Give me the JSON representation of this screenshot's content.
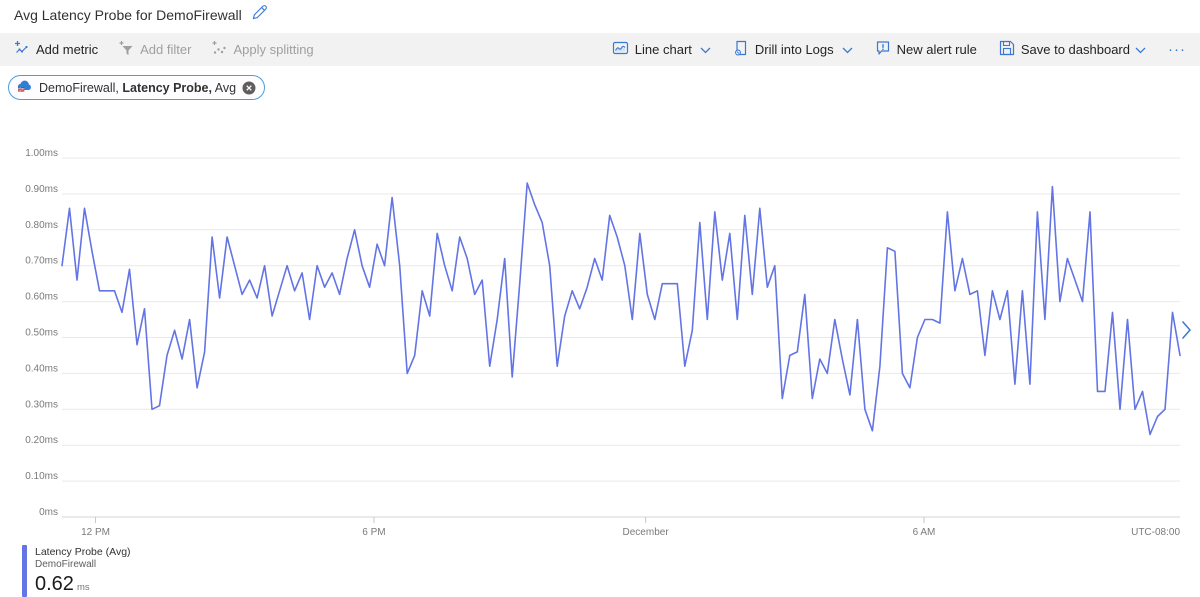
{
  "page": {
    "title": "Avg Latency Probe for DemoFirewall"
  },
  "toolbar": {
    "add_metric": "Add metric",
    "add_filter": "Add filter",
    "apply_splitting": "Apply splitting",
    "line_chart": "Line chart",
    "drill_into_logs": "Drill into Logs",
    "new_alert_rule": "New alert rule",
    "save_to_dashboard": "Save to dashboard",
    "more": "···"
  },
  "metric_pill": {
    "resource": "DemoFirewall,",
    "metric": "Latency Probe,",
    "aggregation": "Avg"
  },
  "legend": {
    "series_label": "Latency Probe (Avg)",
    "resource": "DemoFirewall",
    "value": "0.62",
    "unit": "ms"
  },
  "colors": {
    "series": "#6374e5",
    "icon_blue": "#3b78d2",
    "toolbar_bg": "#f2f2f2",
    "disabled_text": "#a19f9d",
    "text": "#323130",
    "axis_text": "#7a7a7a",
    "grid": "#e9e9e9",
    "pill_border": "#4f9cda"
  },
  "chart_data": {
    "type": "line",
    "title": "Avg Latency Probe for DemoFirewall",
    "y_unit": "ms",
    "ylim": [
      0,
      1.0
    ],
    "grid": true,
    "legend_position": "bottom-left",
    "timezone_label": "UTC-08:00",
    "y_ticks": [
      {
        "label": "1.00ms",
        "v": 1.0
      },
      {
        "label": "0.90ms",
        "v": 0.9
      },
      {
        "label": "0.80ms",
        "v": 0.8
      },
      {
        "label": "0.70ms",
        "v": 0.7
      },
      {
        "label": "0.60ms",
        "v": 0.6
      },
      {
        "label": "0.50ms",
        "v": 0.5
      },
      {
        "label": "0.40ms",
        "v": 0.4
      },
      {
        "label": "0.30ms",
        "v": 0.3
      },
      {
        "label": "0.20ms",
        "v": 0.2
      },
      {
        "label": "0.10ms",
        "v": 0.1
      },
      {
        "label": "0ms",
        "v": 0.0
      }
    ],
    "x_ticks": [
      {
        "label": "12 PM",
        "f": 0.03
      },
      {
        "label": "6 PM",
        "f": 0.279
      },
      {
        "label": "December",
        "f": 0.522
      },
      {
        "label": "6 AM",
        "f": 0.771
      }
    ],
    "series": [
      {
        "name": "Latency Probe (Avg)",
        "resource": "DemoFirewall",
        "aggregation": "Avg",
        "avg_display": "0.62 ms",
        "color": "#6374e5",
        "values": [
          0.7,
          0.86,
          0.66,
          0.86,
          0.74,
          0.63,
          0.63,
          0.63,
          0.57,
          0.69,
          0.48,
          0.58,
          0.3,
          0.31,
          0.45,
          0.52,
          0.44,
          0.55,
          0.36,
          0.46,
          0.78,
          0.61,
          0.78,
          0.7,
          0.62,
          0.66,
          0.61,
          0.7,
          0.56,
          0.63,
          0.7,
          0.63,
          0.68,
          0.55,
          0.7,
          0.64,
          0.68,
          0.62,
          0.72,
          0.8,
          0.7,
          0.64,
          0.76,
          0.7,
          0.89,
          0.7,
          0.4,
          0.45,
          0.63,
          0.56,
          0.79,
          0.7,
          0.63,
          0.78,
          0.72,
          0.62,
          0.66,
          0.42,
          0.55,
          0.72,
          0.39,
          0.65,
          0.93,
          0.87,
          0.82,
          0.7,
          0.42,
          0.56,
          0.63,
          0.58,
          0.64,
          0.72,
          0.66,
          0.84,
          0.78,
          0.7,
          0.55,
          0.79,
          0.62,
          0.55,
          0.65,
          0.65,
          0.65,
          0.42,
          0.52,
          0.82,
          0.55,
          0.85,
          0.66,
          0.79,
          0.55,
          0.84,
          0.62,
          0.86,
          0.64,
          0.7,
          0.33,
          0.45,
          0.46,
          0.62,
          0.33,
          0.44,
          0.4,
          0.55,
          0.44,
          0.34,
          0.55,
          0.3,
          0.24,
          0.42,
          0.75,
          0.74,
          0.4,
          0.36,
          0.5,
          0.55,
          0.55,
          0.54,
          0.85,
          0.63,
          0.72,
          0.62,
          0.63,
          0.45,
          0.63,
          0.55,
          0.63,
          0.37,
          0.63,
          0.37,
          0.85,
          0.55,
          0.92,
          0.6,
          0.72,
          0.66,
          0.6,
          0.85,
          0.35,
          0.35,
          0.57,
          0.3,
          0.55,
          0.3,
          0.35,
          0.23,
          0.28,
          0.3,
          0.57,
          0.45
        ]
      }
    ]
  }
}
